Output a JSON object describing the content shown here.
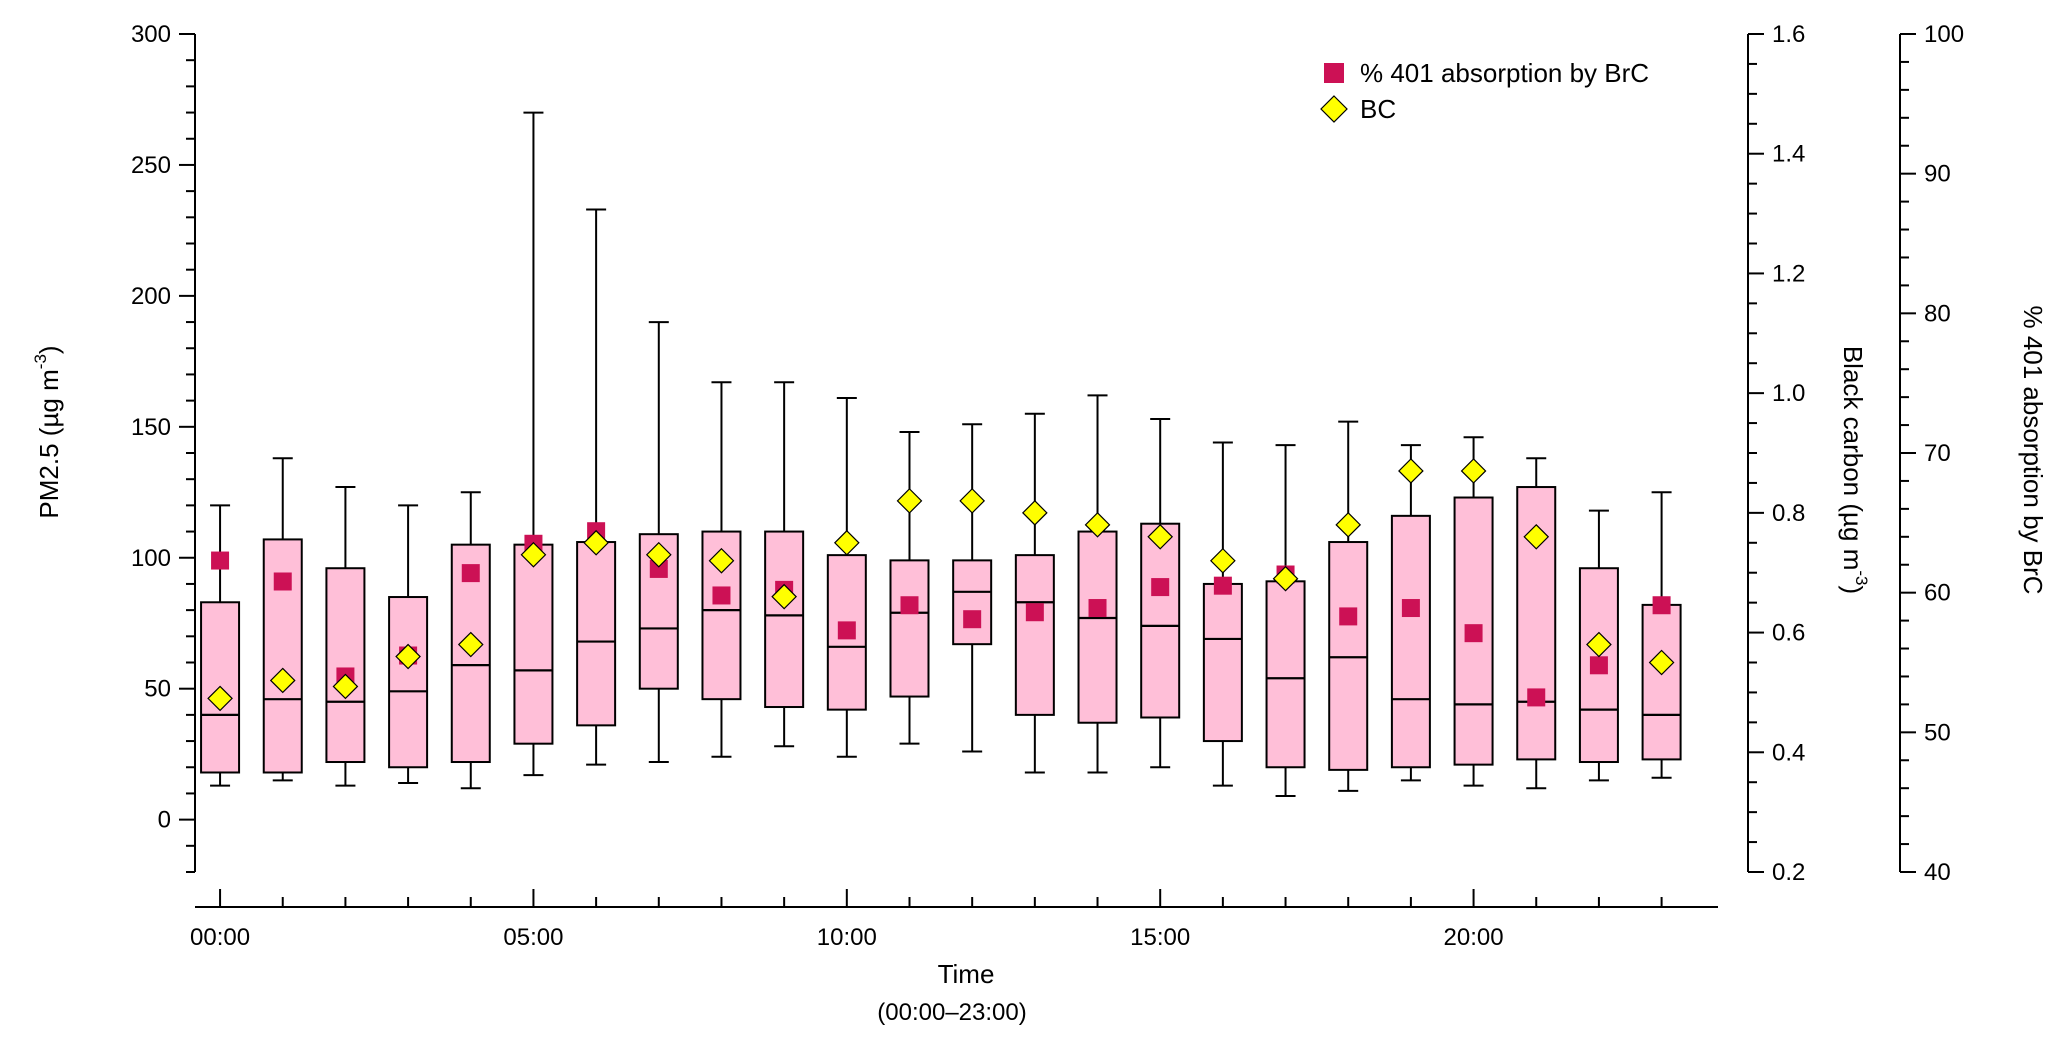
{
  "chart_data": {
    "type": "box",
    "title": "",
    "xlabel": "Time",
    "xlabel_sub": "(00:00–23:00)",
    "x_tick_labels": [
      "00:00",
      "05:00",
      "10:00",
      "15:00",
      "20:00"
    ],
    "x_tick_hours": [
      0,
      5,
      10,
      15,
      20
    ],
    "xlim": [
      -0.4,
      23.9
    ],
    "ylabel_left": {
      "main": "PM2.5 (µg m",
      "sup": "-3",
      "tail": ")"
    },
    "ylim_left": [
      -20,
      300
    ],
    "yticks_left": [
      0,
      50,
      100,
      150,
      200,
      250,
      300
    ],
    "ylabel_right1": {
      "main": "Black carbon (µg m",
      "sup": "-3",
      "tail": ")"
    },
    "ylim_right1": [
      0.2,
      1.6
    ],
    "yticks_right1": [
      0.2,
      0.4,
      0.6,
      0.8,
      1.0,
      1.2,
      1.4,
      1.6
    ],
    "ylabel_right2": "% 401 absorption by BrC",
    "ylim_right2": [
      40,
      100
    ],
    "yticks_right2": [
      40,
      50,
      60,
      70,
      80,
      90,
      100
    ],
    "legend": {
      "placement": "top-right",
      "entries": [
        {
          "label": "% 401 absorption by BrC",
          "marker": "square",
          "color": "#cc1155"
        },
        {
          "label": "BC",
          "marker": "diamond",
          "color": "#ffff00"
        }
      ]
    },
    "colors": {
      "box_fill": "#ffbfd8",
      "outline": "#000000",
      "brc_marker": "#cc1155",
      "bc_marker": "#ffff00"
    },
    "boxes": [
      {
        "hour": 0,
        "min": 13,
        "q1": 18,
        "median": 40,
        "q3": 83,
        "max": 120
      },
      {
        "hour": 1,
        "min": 15,
        "q1": 18,
        "median": 46,
        "q3": 107,
        "max": 138
      },
      {
        "hour": 2,
        "min": 13,
        "q1": 22,
        "median": 45,
        "q3": 96,
        "max": 127
      },
      {
        "hour": 3,
        "min": 14,
        "q1": 20,
        "median": 49,
        "q3": 85,
        "max": 120
      },
      {
        "hour": 4,
        "min": 12,
        "q1": 22,
        "median": 59,
        "q3": 105,
        "max": 125
      },
      {
        "hour": 5,
        "min": 17,
        "q1": 29,
        "median": 57,
        "q3": 105,
        "max": 270
      },
      {
        "hour": 6,
        "min": 21,
        "q1": 36,
        "median": 68,
        "q3": 106,
        "max": 233
      },
      {
        "hour": 7,
        "min": 22,
        "q1": 50,
        "median": 73,
        "q3": 109,
        "max": 190
      },
      {
        "hour": 8,
        "min": 24,
        "q1": 46,
        "median": 80,
        "q3": 110,
        "max": 167
      },
      {
        "hour": 9,
        "min": 28,
        "q1": 43,
        "median": 78,
        "q3": 110,
        "max": 167
      },
      {
        "hour": 10,
        "min": 24,
        "q1": 42,
        "median": 66,
        "q3": 101,
        "max": 161
      },
      {
        "hour": 11,
        "min": 29,
        "q1": 47,
        "median": 79,
        "q3": 99,
        "max": 148
      },
      {
        "hour": 12,
        "min": 26,
        "q1": 67,
        "median": 87,
        "q3": 99,
        "max": 151
      },
      {
        "hour": 13,
        "min": 18,
        "q1": 40,
        "median": 83,
        "q3": 101,
        "max": 155
      },
      {
        "hour": 14,
        "min": 18,
        "q1": 37,
        "median": 77,
        "q3": 110,
        "max": 162
      },
      {
        "hour": 15,
        "min": 20,
        "q1": 39,
        "median": 74,
        "q3": 113,
        "max": 153
      },
      {
        "hour": 16,
        "min": 13,
        "q1": 30,
        "median": 69,
        "q3": 90,
        "max": 144
      },
      {
        "hour": 17,
        "min": 9,
        "q1": 20,
        "median": 54,
        "q3": 91,
        "max": 143
      },
      {
        "hour": 18,
        "min": 11,
        "q1": 19,
        "median": 62,
        "q3": 106,
        "max": 152
      },
      {
        "hour": 19,
        "min": 15,
        "q1": 20,
        "median": 46,
        "q3": 116,
        "max": 143
      },
      {
        "hour": 20,
        "min": 13,
        "q1": 21,
        "median": 44,
        "q3": 123,
        "max": 146
      },
      {
        "hour": 21,
        "min": 12,
        "q1": 23,
        "median": 45,
        "q3": 127,
        "max": 138
      },
      {
        "hour": 22,
        "min": 15,
        "q1": 22,
        "median": 42,
        "q3": 96,
        "max": 118
      },
      {
        "hour": 23,
        "min": 16,
        "q1": 23,
        "median": 40,
        "q3": 82,
        "max": 125
      }
    ],
    "brc_percent": [
      62.3,
      60.8,
      54.0,
      55.5,
      61.4,
      63.5,
      64.4,
      61.7,
      59.8,
      60.2,
      57.3,
      59.1,
      58.1,
      58.6,
      58.9,
      60.4,
      60.5,
      61.3,
      58.3,
      58.9,
      57.1,
      52.5,
      54.8,
      59.1
    ],
    "bc": [
      0.49,
      0.52,
      0.51,
      0.56,
      0.58,
      0.73,
      0.75,
      0.73,
      0.72,
      0.66,
      0.75,
      0.82,
      0.82,
      0.8,
      0.78,
      0.76,
      0.72,
      0.69,
      0.78,
      0.87,
      0.87,
      0.76,
      0.58,
      0.55
    ]
  }
}
